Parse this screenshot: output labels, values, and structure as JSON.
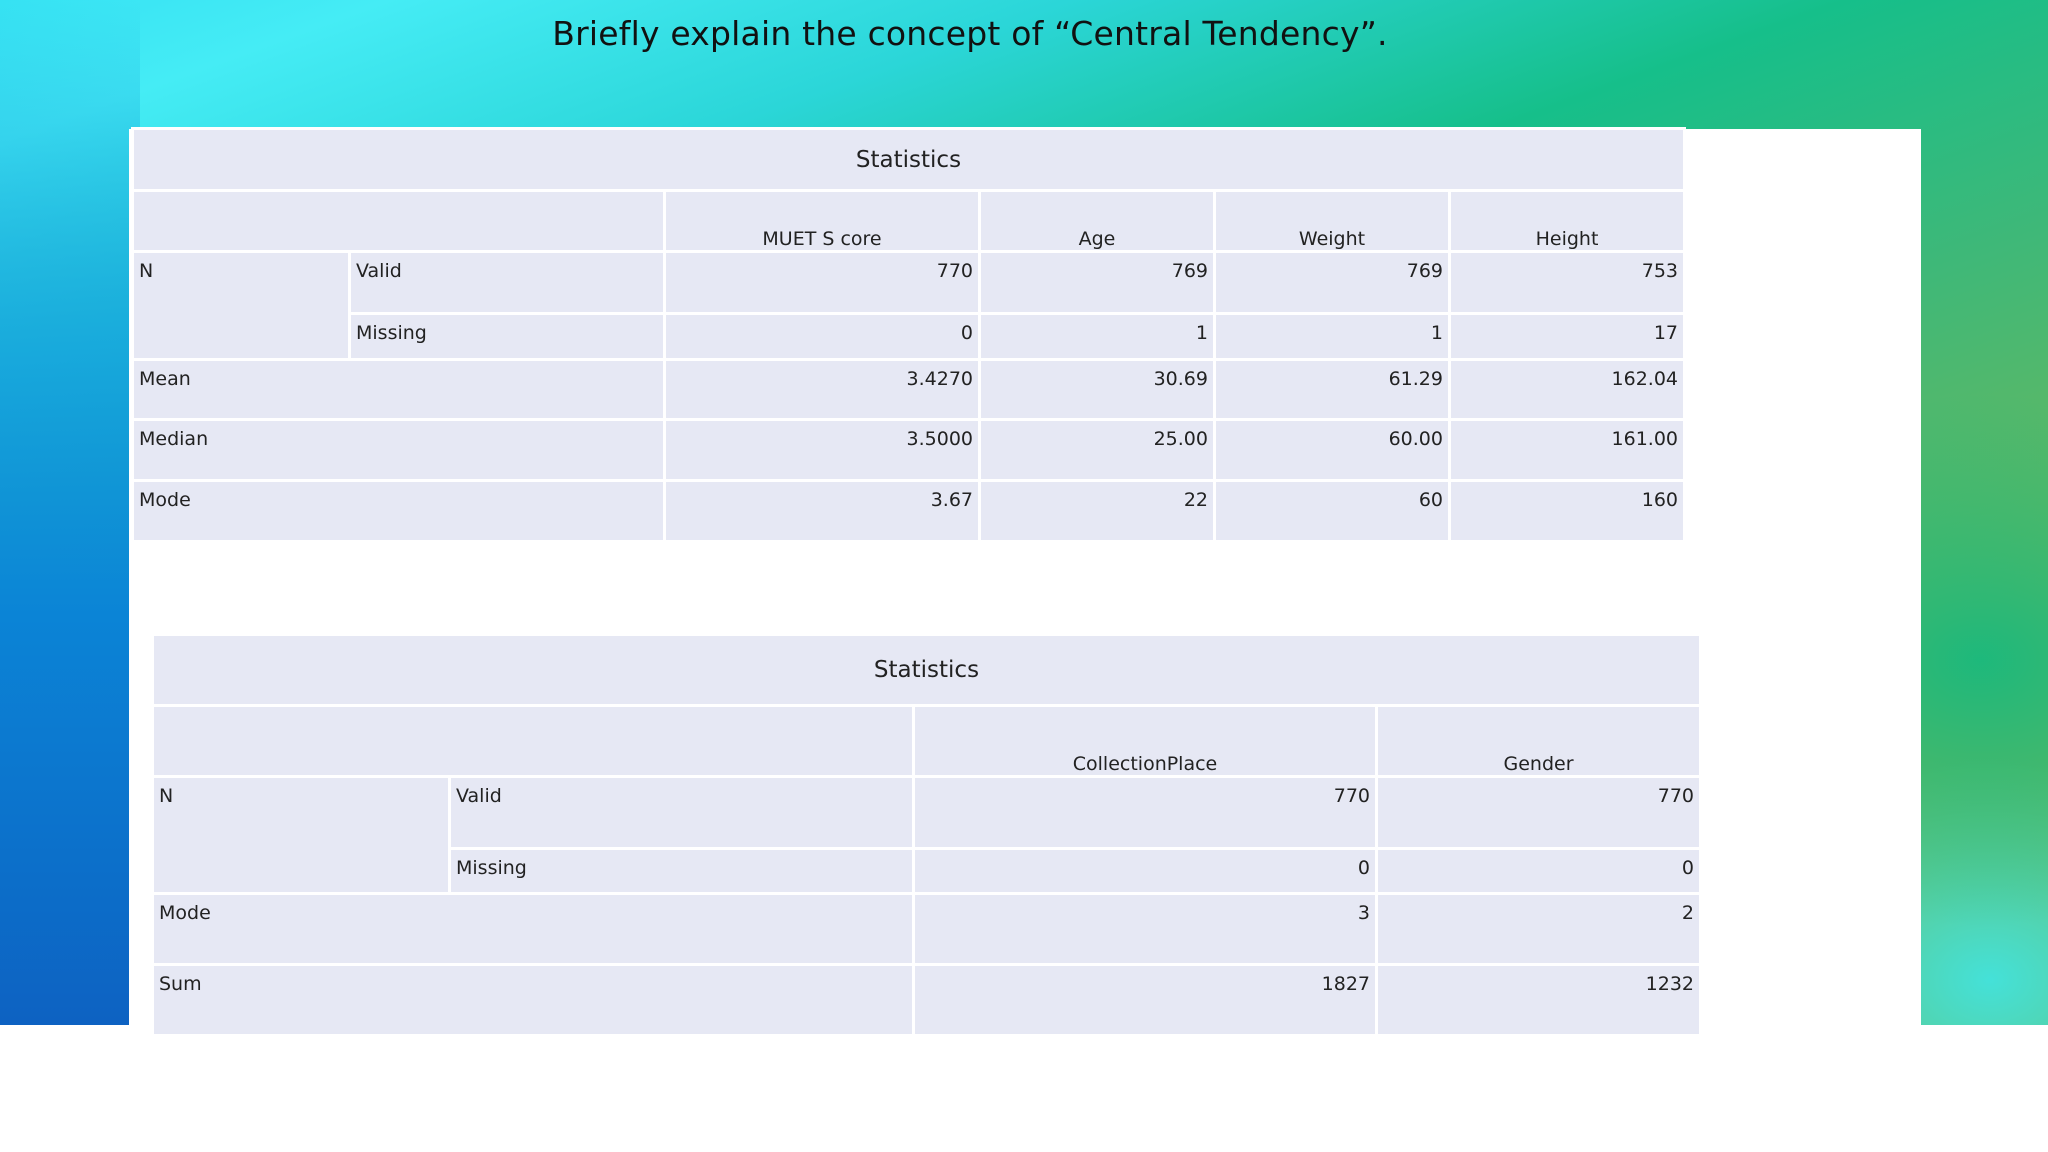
{
  "slide": {
    "title": "Briefly explain the concept of “Central Tendency”."
  },
  "table1": {
    "caption": "Statistics",
    "columns": [
      "MUET S core",
      "Age",
      "Weight",
      "Height"
    ],
    "rows": {
      "n_label": "N",
      "valid": {
        "label": "Valid",
        "values": [
          "770",
          "769",
          "769",
          "753"
        ]
      },
      "missing": {
        "label": "Missing",
        "values": [
          "0",
          "1",
          "1",
          "17"
        ]
      },
      "mean": {
        "label": "Mean",
        "values": [
          "3.4270",
          "30.69",
          "61.29",
          "162.04"
        ]
      },
      "median": {
        "label": "Median",
        "values": [
          "3.5000",
          "25.00",
          "60.00",
          "161.00"
        ]
      },
      "mode": {
        "label": "Mode",
        "values": [
          "3.67",
          "22",
          "60",
          "160"
        ]
      }
    }
  },
  "table2": {
    "caption": "Statistics",
    "columns": [
      "CollectionPlace",
      "Gender"
    ],
    "rows": {
      "n_label": "N",
      "valid": {
        "label": "Valid",
        "values": [
          "770",
          "770"
        ]
      },
      "missing": {
        "label": "Missing",
        "values": [
          "0",
          "0"
        ]
      },
      "mode": {
        "label": "Mode",
        "values": [
          "3",
          "2"
        ]
      },
      "sum": {
        "label": "Sum",
        "values": [
          "1827",
          "1232"
        ]
      }
    }
  },
  "colors": {
    "cell_fill": "#e6e8f4",
    "gradient_teal": "#16bf8a",
    "gradient_cyan": "#45ecf5",
    "gradient_blue": "#0d62c2",
    "gradient_green": "#6cb75c"
  }
}
